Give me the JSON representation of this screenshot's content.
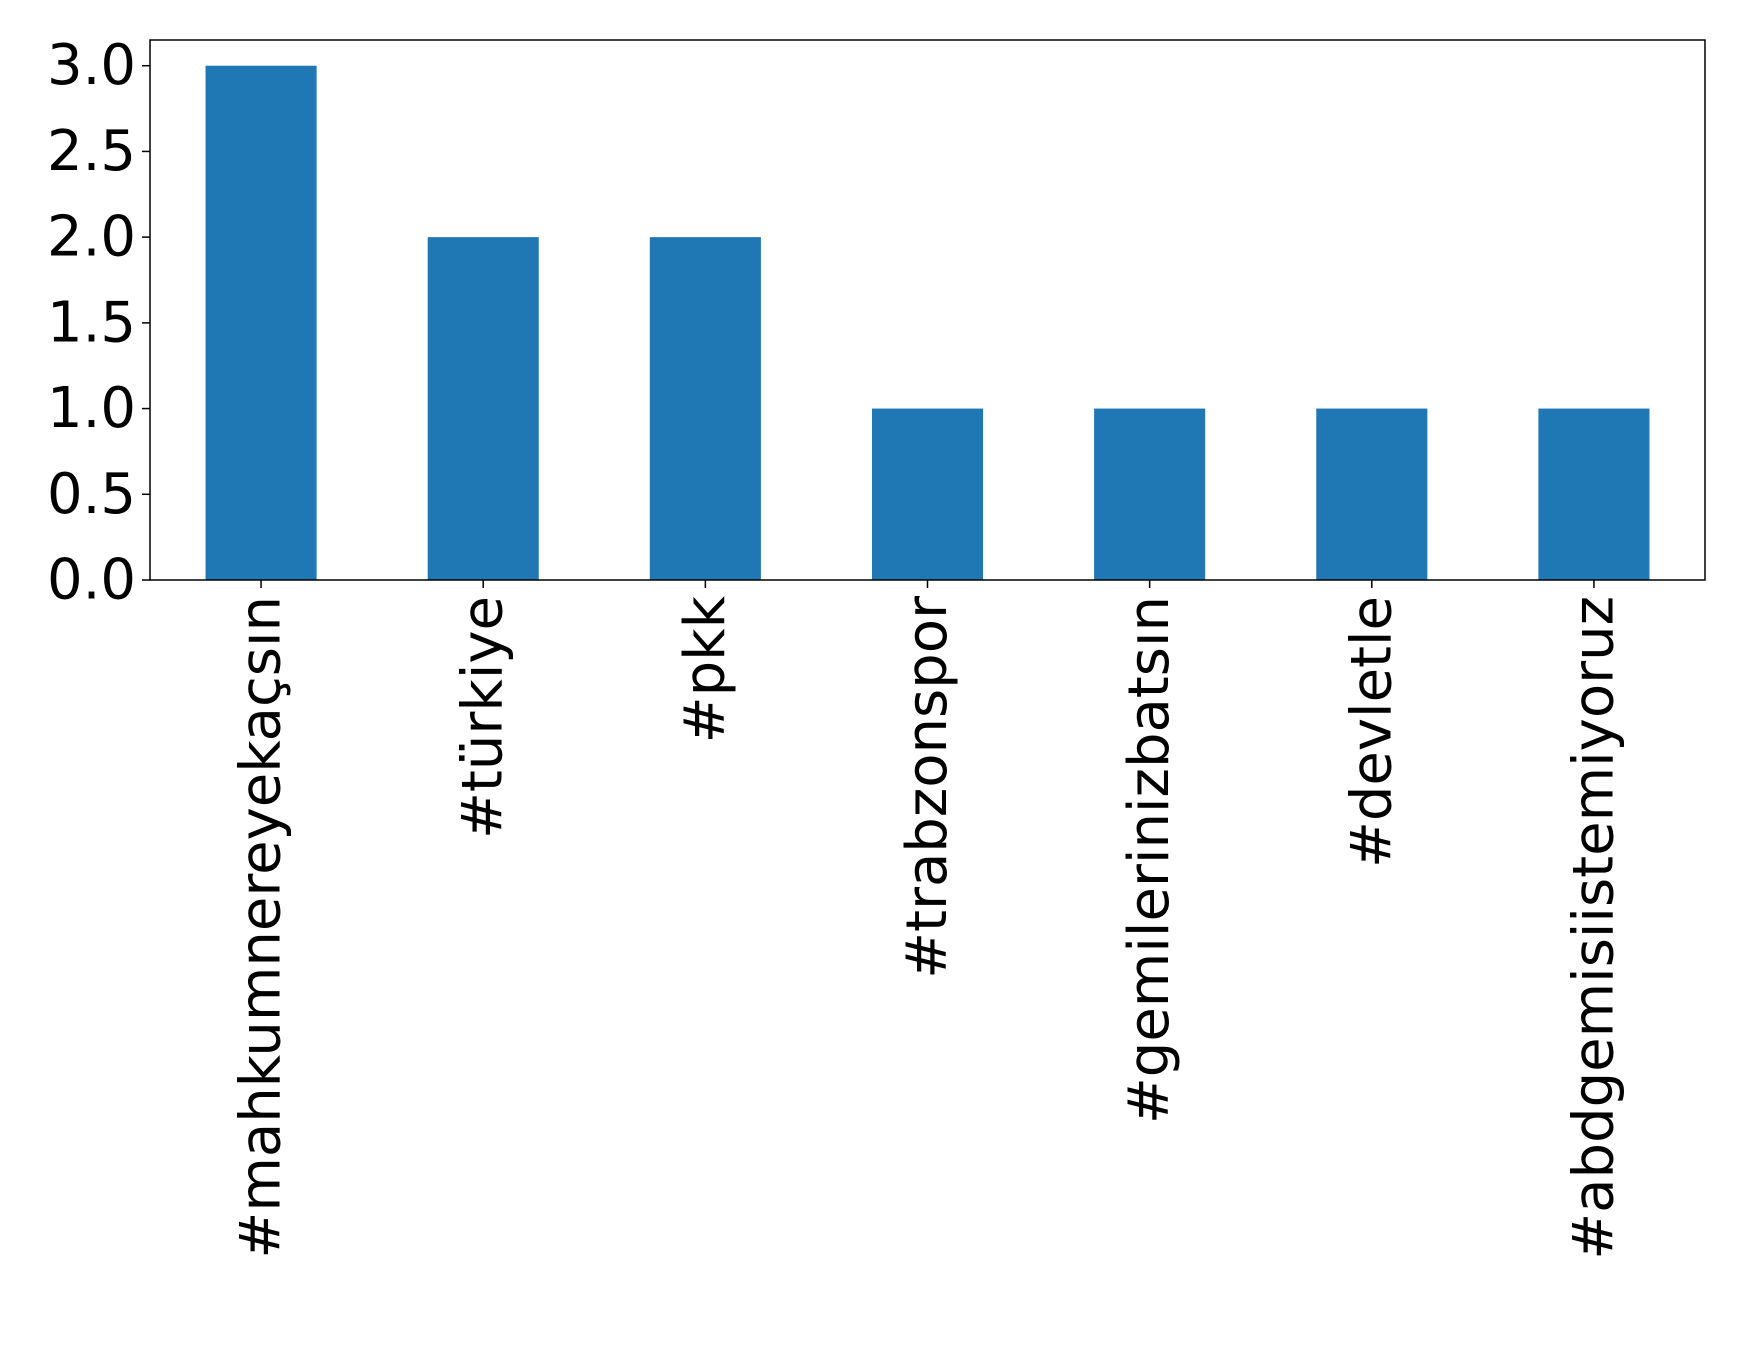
{
  "chart_data": {
    "type": "bar",
    "title": "",
    "xlabel": "",
    "ylabel": "",
    "categories": [
      "#mahkumnereyekaçsın",
      "#türkiye",
      "#pkk",
      "#trabzonspor",
      "#gemilerinizbatsın",
      "#devletle",
      "#abdgemisiistemiyoruz"
    ],
    "values": [
      3,
      2,
      2,
      1,
      1,
      1,
      1
    ],
    "ylim": [
      0,
      3.15
    ],
    "yticks": [
      "0.0",
      "0.5",
      "1.0",
      "1.5",
      "2.0",
      "2.5",
      "3.0"
    ],
    "bar_color": "#1f77b4",
    "grid": false,
    "legend": "none"
  }
}
